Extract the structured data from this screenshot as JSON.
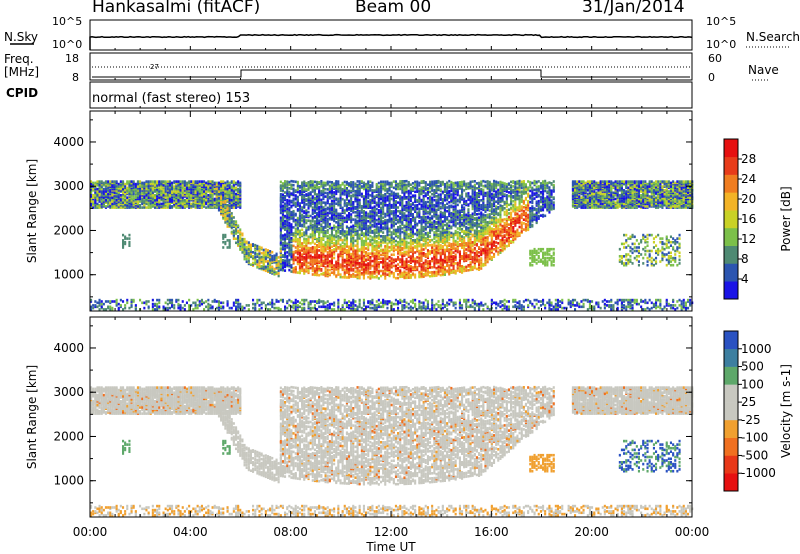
{
  "header": {
    "site": "Hankasalmi (fitACF)",
    "beam": "Beam 00",
    "date": "31/Jan/2014"
  },
  "top_panels": {
    "nsky_label": "N.Sky",
    "nsearch_label": "N.Search",
    "freq_label_line1": "Freq.",
    "freq_label_line2": "[MHz]",
    "nave_label": "Nave",
    "cpid_label": "CPID",
    "cpid_text": "normal (fast stereo) 153",
    "noise_ticks_left": [
      "10^5",
      "10^0"
    ],
    "noise_ticks_right": [
      "10^5",
      "10^0"
    ],
    "freq_ticks": [
      "18",
      "8"
    ],
    "nave_ticks": [
      "60",
      "0"
    ],
    "freq_annotation": "27"
  },
  "colors": {
    "power_scale": [
      "#1a14e6",
      "#2c55b0",
      "#4f8a73",
      "#7cc04a",
      "#c9d226",
      "#f3b326",
      "#f07d20",
      "#e83c1a",
      "#e61010"
    ],
    "velocity_scale": [
      "#2a52c2",
      "#3d7fa0",
      "#5ea86a",
      "#c8c8c0",
      "#c8c8c0",
      "#f0a030",
      "#f07020",
      "#e83818",
      "#e61010"
    ]
  },
  "chart_data": [
    {
      "type": "heatmap",
      "title": "Hankasalmi (fitACF) Beam 00 31/Jan/2014",
      "quantity": "Power",
      "unit": "dB",
      "ylabel": "Slant Range [km]",
      "xlabel": "Time UT",
      "x_ticks": [
        "00:00",
        "04:00",
        "08:00",
        "12:00",
        "16:00",
        "20:00",
        "00:00"
      ],
      "xlim_hours": [
        0,
        24
      ],
      "y_ticks": [
        "1000",
        "2000",
        "3000",
        "4000"
      ],
      "ylim_km": [
        180,
        4700
      ],
      "colorbar_ticks": [
        "4",
        "8",
        "12",
        "16",
        "20",
        "24",
        "28"
      ],
      "colorbar_label": "Power [dB]",
      "colorbar_range": [
        0,
        30
      ]
    },
    {
      "type": "heatmap",
      "title": "Hankasalmi (fitACF) Beam 00 31/Jan/2014",
      "quantity": "Velocity",
      "unit": "m s^-1",
      "ylabel": "Slant Range [km]",
      "xlabel": "Time UT",
      "x_ticks": [
        "00:00",
        "04:00",
        "08:00",
        "12:00",
        "16:00",
        "20:00",
        "00:00"
      ],
      "xlim_hours": [
        0,
        24
      ],
      "y_ticks": [
        "1000",
        "2000",
        "3000",
        "4000"
      ],
      "ylim_km": [
        180,
        4700
      ],
      "colorbar_ticks": [
        "1000",
        "500",
        "100",
        "25",
        "-25",
        "-100",
        "-500",
        "-1000"
      ],
      "colorbar_label": "Velocity [m s-1]",
      "colorbar_range": [
        -1000,
        1000
      ]
    }
  ]
}
